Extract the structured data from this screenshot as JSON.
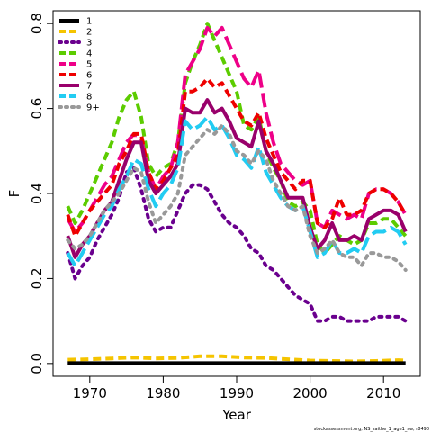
{
  "chart_data": {
    "type": "line",
    "title": "",
    "xlabel": "Year",
    "ylabel": "F",
    "xlim": [
      1965,
      2015
    ],
    "ylim": [
      -0.03,
      0.83
    ],
    "xticks": [
      1970,
      1980,
      1990,
      2000,
      2010
    ],
    "yticks": [
      0.0,
      0.2,
      0.4,
      0.6,
      0.8
    ],
    "xtick_labels": [
      "1970",
      "1980",
      "1990",
      "2000",
      "2010"
    ],
    "ytick_labels": [
      "0.0",
      "0.2",
      "0.4",
      "0.6",
      "0.8"
    ],
    "grid": false,
    "legend_position": "top-left",
    "footer": "stockassessment.org, NS_saithe_1_age1_sw, r8490",
    "series": [
      {
        "name": "1",
        "color": "#000000",
        "dash": "solid",
        "x": [
          1967,
          1970,
          1975,
          1980,
          1985,
          1990,
          1995,
          2000,
          2005,
          2010,
          2013
        ],
        "y": [
          0.001,
          0.001,
          0.001,
          0.001,
          0.001,
          0.001,
          0.001,
          0.001,
          0.001,
          0.001,
          0.001
        ]
      },
      {
        "name": "2",
        "color": "#f5c400",
        "dash": "dashed",
        "x": [
          1967,
          1970,
          1973,
          1976,
          1979,
          1982,
          1985,
          1988,
          1991,
          1994,
          1997,
          2000,
          2003,
          2006,
          2009,
          2012,
          2013
        ],
        "y": [
          0.009,
          0.01,
          0.012,
          0.014,
          0.012,
          0.013,
          0.017,
          0.017,
          0.014,
          0.013,
          0.01,
          0.007,
          0.006,
          0.005,
          0.006,
          0.008,
          0.007
        ]
      },
      {
        "name": "3",
        "color": "#6a008e",
        "dash": "dotted",
        "x": [
          1967,
          1968,
          1969,
          1970,
          1971,
          1972,
          1973,
          1974,
          1975,
          1976,
          1977,
          1978,
          1979,
          1980,
          1981,
          1982,
          1983,
          1984,
          1985,
          1986,
          1987,
          1988,
          1989,
          1990,
          1991,
          1992,
          1993,
          1994,
          1995,
          1996,
          1997,
          1998,
          1999,
          2000,
          2001,
          2002,
          2003,
          2004,
          2005,
          2006,
          2007,
          2008,
          2009,
          2010,
          2011,
          2012,
          2013
        ],
        "y": [
          0.26,
          0.2,
          0.23,
          0.25,
          0.29,
          0.32,
          0.35,
          0.39,
          0.45,
          0.46,
          0.41,
          0.34,
          0.31,
          0.32,
          0.32,
          0.36,
          0.4,
          0.42,
          0.42,
          0.41,
          0.38,
          0.35,
          0.33,
          0.32,
          0.3,
          0.27,
          0.26,
          0.23,
          0.22,
          0.2,
          0.18,
          0.16,
          0.15,
          0.14,
          0.1,
          0.1,
          0.11,
          0.11,
          0.1,
          0.1,
          0.1,
          0.1,
          0.11,
          0.11,
          0.11,
          0.11,
          0.1
        ]
      },
      {
        "name": "4",
        "color": "#5ccc00",
        "dash": "dashed",
        "x": [
          1967,
          1968,
          1969,
          1970,
          1971,
          1972,
          1973,
          1974,
          1975,
          1976,
          1977,
          1978,
          1979,
          1980,
          1981,
          1982,
          1983,
          1984,
          1985,
          1986,
          1987,
          1988,
          1989,
          1990,
          1991,
          1992,
          1993,
          1994,
          1995,
          1996,
          1997,
          1998,
          1999,
          2000,
          2001,
          2002,
          2003,
          2004,
          2005,
          2006,
          2007,
          2008,
          2009,
          2010,
          2011,
          2012,
          2013
        ],
        "y": [
          0.37,
          0.33,
          0.36,
          0.4,
          0.44,
          0.48,
          0.52,
          0.58,
          0.62,
          0.64,
          0.58,
          0.47,
          0.44,
          0.46,
          0.47,
          0.52,
          0.66,
          0.71,
          0.75,
          0.8,
          0.76,
          0.72,
          0.68,
          0.64,
          0.56,
          0.55,
          0.58,
          0.5,
          0.46,
          0.43,
          0.38,
          0.37,
          0.38,
          0.36,
          0.28,
          0.26,
          0.28,
          0.3,
          0.29,
          0.28,
          0.29,
          0.33,
          0.33,
          0.34,
          0.34,
          0.32,
          0.3
        ]
      },
      {
        "name": "5",
        "color": "#ee0088",
        "dash": "longdash",
        "x": [
          1967,
          1968,
          1969,
          1970,
          1971,
          1972,
          1973,
          1974,
          1975,
          1976,
          1977,
          1978,
          1979,
          1980,
          1981,
          1982,
          1983,
          1984,
          1985,
          1986,
          1987,
          1988,
          1989,
          1990,
          1991,
          1992,
          1993,
          1994,
          1995,
          1996,
          1997,
          1998,
          1999,
          2000,
          2001,
          2002,
          2003,
          2004,
          2005,
          2006,
          2007,
          2008,
          2009,
          2010,
          2011,
          2012,
          2013
        ],
        "y": [
          0.34,
          0.31,
          0.33,
          0.36,
          0.39,
          0.42,
          0.44,
          0.48,
          0.52,
          0.54,
          0.53,
          0.45,
          0.41,
          0.44,
          0.46,
          0.52,
          0.68,
          0.71,
          0.74,
          0.79,
          0.77,
          0.79,
          0.75,
          0.71,
          0.67,
          0.65,
          0.69,
          0.59,
          0.52,
          0.47,
          0.45,
          0.43,
          0.42,
          0.43,
          0.33,
          0.32,
          0.36,
          0.35,
          0.34,
          0.35,
          0.34,
          0.4,
          0.41,
          0.41,
          0.4,
          0.38,
          0.35
        ]
      },
      {
        "name": "6",
        "color": "#ee0000",
        "dash": "dashed",
        "x": [
          1967,
          1968,
          1969,
          1970,
          1971,
          1972,
          1973,
          1974,
          1975,
          1976,
          1977,
          1978,
          1979,
          1980,
          1981,
          1982,
          1983,
          1984,
          1985,
          1986,
          1987,
          1988,
          1989,
          1990,
          1991,
          1992,
          1993,
          1994,
          1995,
          1996,
          1997,
          1998,
          1999,
          2000,
          2001,
          2002,
          2003,
          2004,
          2005,
          2006,
          2007,
          2008,
          2009,
          2010,
          2011,
          2012,
          2013
        ],
        "y": [
          0.35,
          0.3,
          0.33,
          0.36,
          0.38,
          0.4,
          0.42,
          0.47,
          0.5,
          0.54,
          0.54,
          0.45,
          0.41,
          0.43,
          0.46,
          0.49,
          0.64,
          0.64,
          0.65,
          0.67,
          0.65,
          0.66,
          0.63,
          0.6,
          0.57,
          0.56,
          0.59,
          0.53,
          0.49,
          0.45,
          0.43,
          0.41,
          0.43,
          0.43,
          0.33,
          0.32,
          0.34,
          0.39,
          0.35,
          0.35,
          0.36,
          0.4,
          0.41,
          0.41,
          0.4,
          0.38,
          0.35
        ]
      },
      {
        "name": "7",
        "color": "#99006b",
        "dash": "solid",
        "x": [
          1967,
          1968,
          1969,
          1970,
          1971,
          1972,
          1973,
          1974,
          1975,
          1976,
          1977,
          1978,
          1979,
          1980,
          1981,
          1982,
          1983,
          1984,
          1985,
          1986,
          1987,
          1988,
          1989,
          1990,
          1991,
          1992,
          1993,
          1994,
          1995,
          1996,
          1997,
          1998,
          1999,
          2000,
          2001,
          2002,
          2003,
          2004,
          2005,
          2006,
          2007,
          2008,
          2009,
          2010,
          2011,
          2012,
          2013
        ],
        "y": [
          0.3,
          0.25,
          0.28,
          0.3,
          0.33,
          0.36,
          0.38,
          0.43,
          0.48,
          0.52,
          0.52,
          0.43,
          0.4,
          0.42,
          0.44,
          0.47,
          0.6,
          0.59,
          0.59,
          0.62,
          0.59,
          0.6,
          0.57,
          0.53,
          0.52,
          0.51,
          0.57,
          0.5,
          0.47,
          0.43,
          0.39,
          0.39,
          0.39,
          0.32,
          0.27,
          0.29,
          0.33,
          0.29,
          0.29,
          0.3,
          0.29,
          0.34,
          0.35,
          0.36,
          0.36,
          0.35,
          0.31
        ]
      },
      {
        "name": "8",
        "color": "#22ccf2",
        "dash": "longdash",
        "x": [
          1967,
          1968,
          1969,
          1970,
          1971,
          1972,
          1973,
          1974,
          1975,
          1976,
          1977,
          1978,
          1979,
          1980,
          1981,
          1982,
          1983,
          1984,
          1985,
          1986,
          1987,
          1988,
          1989,
          1990,
          1991,
          1992,
          1993,
          1994,
          1995,
          1996,
          1997,
          1998,
          1999,
          2000,
          2001,
          2002,
          2003,
          2004,
          2005,
          2006,
          2007,
          2008,
          2009,
          2010,
          2011,
          2012,
          2013
        ],
        "y": [
          0.26,
          0.23,
          0.26,
          0.29,
          0.32,
          0.35,
          0.37,
          0.41,
          0.44,
          0.48,
          0.47,
          0.41,
          0.37,
          0.4,
          0.42,
          0.46,
          0.57,
          0.55,
          0.56,
          0.58,
          0.55,
          0.56,
          0.53,
          0.49,
          0.48,
          0.46,
          0.51,
          0.45,
          0.42,
          0.39,
          0.37,
          0.36,
          0.37,
          0.31,
          0.25,
          0.26,
          0.29,
          0.26,
          0.26,
          0.27,
          0.26,
          0.3,
          0.31,
          0.31,
          0.32,
          0.31,
          0.28
        ]
      },
      {
        "name": "9+",
        "color": "#999999",
        "dash": "dotted",
        "x": [
          1967,
          1968,
          1969,
          1970,
          1971,
          1972,
          1973,
          1974,
          1975,
          1976,
          1977,
          1978,
          1979,
          1980,
          1981,
          1982,
          1983,
          1984,
          1985,
          1986,
          1987,
          1988,
          1989,
          1990,
          1991,
          1992,
          1993,
          1994,
          1995,
          1996,
          1997,
          1998,
          1999,
          2000,
          2001,
          2002,
          2003,
          2004,
          2005,
          2006,
          2007,
          2008,
          2009,
          2010,
          2011,
          2012,
          2013
        ],
        "y": [
          0.29,
          0.27,
          0.28,
          0.3,
          0.33,
          0.36,
          0.38,
          0.4,
          0.43,
          0.46,
          0.45,
          0.38,
          0.33,
          0.35,
          0.37,
          0.4,
          0.49,
          0.51,
          0.53,
          0.55,
          0.54,
          0.56,
          0.54,
          0.5,
          0.49,
          0.47,
          0.5,
          0.48,
          0.43,
          0.4,
          0.37,
          0.36,
          0.37,
          0.3,
          0.26,
          0.27,
          0.29,
          0.26,
          0.25,
          0.25,
          0.23,
          0.26,
          0.26,
          0.25,
          0.25,
          0.24,
          0.22
        ]
      }
    ]
  }
}
